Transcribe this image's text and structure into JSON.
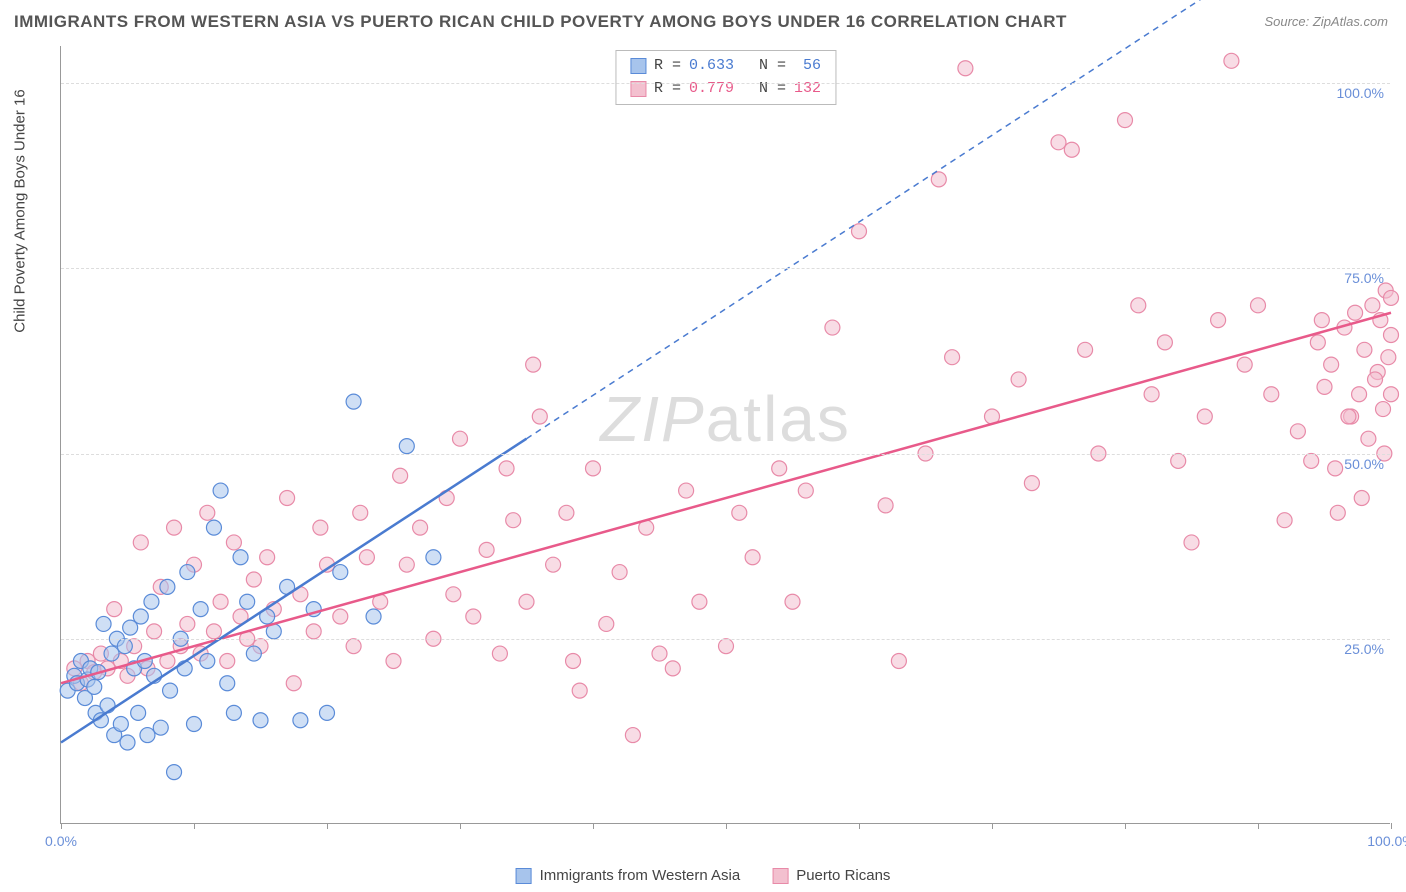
{
  "title": "IMMIGRANTS FROM WESTERN ASIA VS PUERTO RICAN CHILD POVERTY AMONG BOYS UNDER 16 CORRELATION CHART",
  "source": "Source: ZipAtlas.com",
  "y_axis_label": "Child Poverty Among Boys Under 16",
  "watermark": "ZIPatlas",
  "chart": {
    "type": "scatter",
    "xlim": [
      0,
      100
    ],
    "ylim": [
      0,
      105
    ],
    "x_ticks": [
      0,
      10,
      20,
      30,
      40,
      50,
      60,
      70,
      80,
      90,
      100
    ],
    "x_tick_labels": {
      "0": "0.0%",
      "100": "100.0%"
    },
    "y_gridlines": [
      25,
      50,
      75,
      100
    ],
    "y_tick_labels": {
      "25": "25.0%",
      "50": "50.0%",
      "75": "75.0%",
      "100": "100.0%"
    },
    "background_color": "#ffffff",
    "grid_color": "#dddddd",
    "axis_color": "#999999",
    "marker_radius": 7.5,
    "marker_stroke_width": 1.2,
    "series": [
      {
        "id": "blue",
        "label": "Immigrants from Western Asia",
        "fill_color": "#a7c4ec",
        "stroke_color": "#5a8bd8",
        "fill_opacity": 0.55,
        "stats": {
          "R_label": "R =",
          "R": "0.633",
          "N_label": "N =",
          "N": "56"
        },
        "trend": {
          "x1": 0,
          "y1": 11,
          "x2": 35,
          "y2": 52,
          "dashed_to_x": 88,
          "dashed_to_y": 114,
          "color": "#4a7bd0",
          "width": 2.5
        },
        "points": [
          [
            0.5,
            18
          ],
          [
            1,
            20
          ],
          [
            1.2,
            19
          ],
          [
            1.5,
            22
          ],
          [
            1.8,
            17
          ],
          [
            2,
            19.5
          ],
          [
            2.2,
            21
          ],
          [
            2.5,
            18.5
          ],
          [
            2.6,
            15
          ],
          [
            2.8,
            20.5
          ],
          [
            3,
            14
          ],
          [
            3.2,
            27
          ],
          [
            3.5,
            16
          ],
          [
            3.8,
            23
          ],
          [
            4,
            12
          ],
          [
            4.2,
            25
          ],
          [
            4.5,
            13.5
          ],
          [
            4.8,
            24
          ],
          [
            5,
            11
          ],
          [
            5.2,
            26.5
          ],
          [
            5.5,
            21
          ],
          [
            5.8,
            15
          ],
          [
            6,
            28
          ],
          [
            6.3,
            22
          ],
          [
            6.5,
            12
          ],
          [
            6.8,
            30
          ],
          [
            7,
            20
          ],
          [
            7.5,
            13
          ],
          [
            8,
            32
          ],
          [
            8.2,
            18
          ],
          [
            8.5,
            7
          ],
          [
            9,
            25
          ],
          [
            9.3,
            21
          ],
          [
            9.5,
            34
          ],
          [
            10,
            13.5
          ],
          [
            10.5,
            29
          ],
          [
            11,
            22
          ],
          [
            11.5,
            40
          ],
          [
            12,
            45
          ],
          [
            12.5,
            19
          ],
          [
            13,
            15
          ],
          [
            13.5,
            36
          ],
          [
            14,
            30
          ],
          [
            14.5,
            23
          ],
          [
            15,
            14
          ],
          [
            15.5,
            28
          ],
          [
            16,
            26
          ],
          [
            17,
            32
          ],
          [
            18,
            14
          ],
          [
            19,
            29
          ],
          [
            20,
            15
          ],
          [
            21,
            34
          ],
          [
            22,
            57
          ],
          [
            23.5,
            28
          ],
          [
            26,
            51
          ],
          [
            28,
            36
          ]
        ]
      },
      {
        "id": "pink",
        "label": "Puerto Ricans",
        "fill_color": "#f3c0cf",
        "stroke_color": "#e88aa8",
        "fill_opacity": 0.55,
        "stats": {
          "R_label": "R =",
          "R": "0.779",
          "N_label": "N =",
          "N": "132"
        },
        "trend": {
          "x1": 0,
          "y1": 19,
          "x2": 100,
          "y2": 69,
          "color": "#e85a8a",
          "width": 2.5
        },
        "points": [
          [
            1,
            21
          ],
          [
            1.5,
            19
          ],
          [
            2,
            22
          ],
          [
            2.5,
            20.5
          ],
          [
            3,
            23
          ],
          [
            3.5,
            21
          ],
          [
            4,
            29
          ],
          [
            4.5,
            22
          ],
          [
            5,
            20
          ],
          [
            5.5,
            24
          ],
          [
            6,
            38
          ],
          [
            6.5,
            21
          ],
          [
            7,
            26
          ],
          [
            7.5,
            32
          ],
          [
            8,
            22
          ],
          [
            8.5,
            40
          ],
          [
            9,
            24
          ],
          [
            9.5,
            27
          ],
          [
            10,
            35
          ],
          [
            10.5,
            23
          ],
          [
            11,
            42
          ],
          [
            11.5,
            26
          ],
          [
            12,
            30
          ],
          [
            12.5,
            22
          ],
          [
            13,
            38
          ],
          [
            13.5,
            28
          ],
          [
            14,
            25
          ],
          [
            14.5,
            33
          ],
          [
            15,
            24
          ],
          [
            15.5,
            36
          ],
          [
            16,
            29
          ],
          [
            17,
            44
          ],
          [
            17.5,
            19
          ],
          [
            18,
            31
          ],
          [
            19,
            26
          ],
          [
            19.5,
            40
          ],
          [
            20,
            35
          ],
          [
            21,
            28
          ],
          [
            22,
            24
          ],
          [
            22.5,
            42
          ],
          [
            23,
            36
          ],
          [
            24,
            30
          ],
          [
            25,
            22
          ],
          [
            25.5,
            47
          ],
          [
            26,
            35
          ],
          [
            27,
            40
          ],
          [
            28,
            25
          ],
          [
            29,
            44
          ],
          [
            29.5,
            31
          ],
          [
            30,
            52
          ],
          [
            31,
            28
          ],
          [
            32,
            37
          ],
          [
            33,
            23
          ],
          [
            33.5,
            48
          ],
          [
            34,
            41
          ],
          [
            35,
            30
          ],
          [
            35.5,
            62
          ],
          [
            36,
            55
          ],
          [
            37,
            35
          ],
          [
            38,
            42
          ],
          [
            38.5,
            22
          ],
          [
            39,
            18
          ],
          [
            40,
            48
          ],
          [
            41,
            27
          ],
          [
            42,
            34
          ],
          [
            43,
            12
          ],
          [
            44,
            40
          ],
          [
            45,
            23
          ],
          [
            46,
            21
          ],
          [
            47,
            45
          ],
          [
            48,
            30
          ],
          [
            50,
            24
          ],
          [
            51,
            42
          ],
          [
            52,
            36
          ],
          [
            54,
            48
          ],
          [
            55,
            30
          ],
          [
            56,
            45
          ],
          [
            58,
            67
          ],
          [
            60,
            80
          ],
          [
            62,
            43
          ],
          [
            63,
            22
          ],
          [
            65,
            50
          ],
          [
            66,
            87
          ],
          [
            67,
            63
          ],
          [
            68,
            102
          ],
          [
            70,
            55
          ],
          [
            72,
            60
          ],
          [
            73,
            46
          ],
          [
            75,
            92
          ],
          [
            76,
            91
          ],
          [
            77,
            64
          ],
          [
            78,
            50
          ],
          [
            80,
            95
          ],
          [
            81,
            70
          ],
          [
            82,
            58
          ],
          [
            83,
            65
          ],
          [
            84,
            49
          ],
          [
            85,
            38
          ],
          [
            86,
            55
          ],
          [
            87,
            68
          ],
          [
            88,
            103
          ],
          [
            89,
            62
          ],
          [
            90,
            70
          ],
          [
            91,
            58
          ],
          [
            92,
            41
          ],
          [
            93,
            53
          ],
          [
            94,
            49
          ],
          [
            94.5,
            65
          ],
          [
            95,
            59
          ],
          [
            95.5,
            62
          ],
          [
            96,
            42
          ],
          [
            96.5,
            67
          ],
          [
            97,
            55
          ],
          [
            97.3,
            69
          ],
          [
            97.6,
            58
          ],
          [
            98,
            64
          ],
          [
            98.3,
            52
          ],
          [
            98.6,
            70
          ],
          [
            99,
            61
          ],
          [
            99.2,
            68
          ],
          [
            99.4,
            56
          ],
          [
            99.6,
            72
          ],
          [
            99.8,
            63
          ],
          [
            100,
            66
          ],
          [
            100,
            58
          ],
          [
            100,
            71
          ],
          [
            99.5,
            50
          ],
          [
            98.8,
            60
          ],
          [
            97.8,
            44
          ],
          [
            96.8,
            55
          ],
          [
            95.8,
            48
          ],
          [
            94.8,
            68
          ]
        ]
      }
    ]
  },
  "legend": {
    "blue_label": "Immigrants from Western Asia",
    "pink_label": "Puerto Ricans"
  }
}
